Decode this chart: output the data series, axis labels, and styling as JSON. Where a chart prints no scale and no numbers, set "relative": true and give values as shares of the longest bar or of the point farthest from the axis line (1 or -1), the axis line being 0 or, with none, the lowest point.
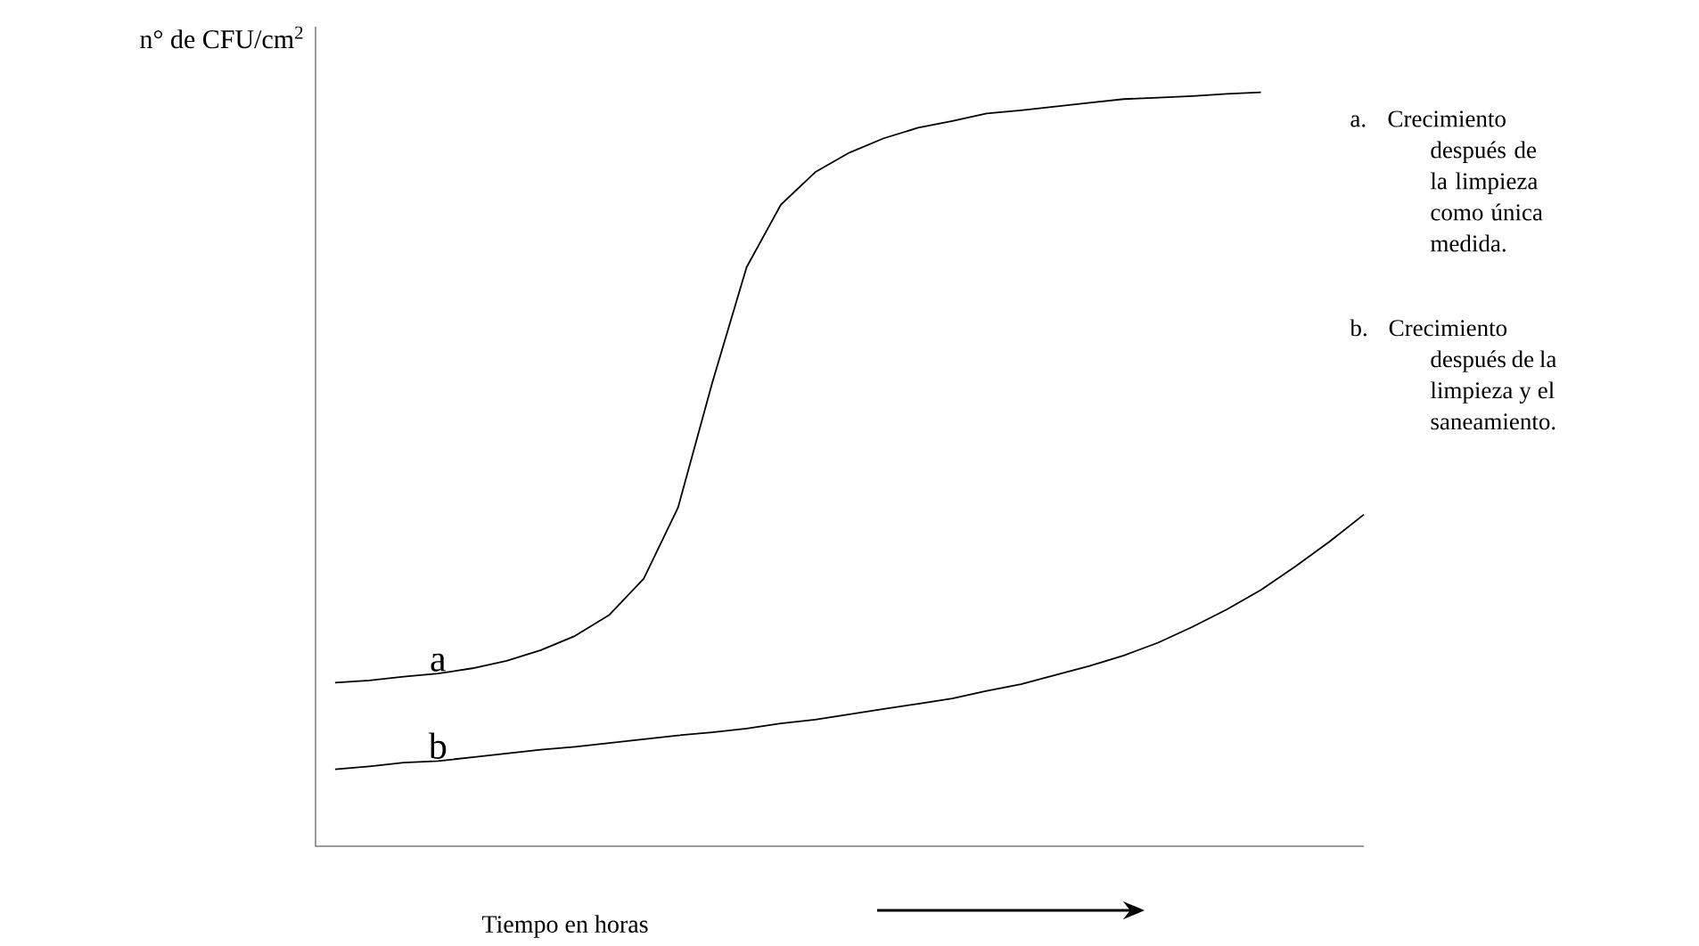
{
  "chart_data": {
    "type": "line",
    "relative": true,
    "ylabel": "n° de CFU/cm$^{2}$",
    "xlabel": "Tiempo en horas",
    "categories": [
      null,
      null,
      null,
      null,
      null,
      null,
      null,
      null,
      null,
      null,
      null,
      null,
      null,
      null,
      null,
      null,
      null,
      null,
      null,
      null,
      null,
      null,
      null,
      null,
      null,
      null,
      null,
      null,
      null,
      null,
      null
    ],
    "series": [
      {
        "name": "a",
        "color": "#000000",
        "values": [
          0.217,
          0.22,
          0.225,
          0.229,
          0.236,
          0.246,
          0.26,
          0.279,
          0.307,
          0.355,
          0.449,
          0.615,
          0.768,
          0.851,
          0.894,
          0.92,
          0.939,
          0.953,
          0.962,
          0.972,
          0.976,
          0.981,
          0.986,
          0.991,
          0.993,
          0.995,
          0.998,
          1.0,
          null,
          null,
          null
        ]
      },
      {
        "name": "b",
        "color": "#000000",
        "values": [
          0.102,
          0.106,
          0.111,
          0.113,
          0.118,
          0.123,
          0.128,
          0.132,
          0.137,
          0.142,
          0.147,
          0.151,
          0.156,
          0.163,
          0.168,
          0.175,
          0.182,
          0.189,
          0.196,
          0.206,
          0.215,
          0.227,
          0.239,
          0.253,
          0.27,
          0.291,
          0.314,
          0.34,
          0.371,
          0.404,
          0.44
        ]
      }
    ],
    "annotations": [
      "a. Crecimiento después de la limpieza como única medida.",
      "b. Crecimiento después de la limpieza y el saneamiento."
    ]
  }
}
